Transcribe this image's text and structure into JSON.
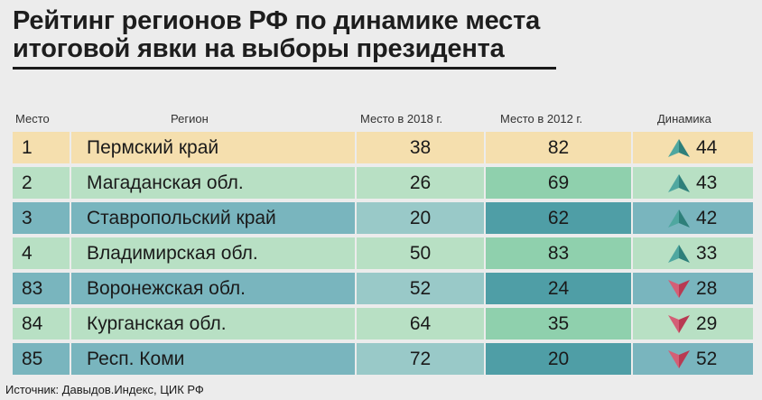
{
  "title_line1": "Рейтинг регионов РФ по динамике места",
  "title_line2": "итоговой явки на выборы президента",
  "headers": {
    "rank": "Место",
    "region": "Регион",
    "place2018": "Место в 2018 г.",
    "place2012": "Место в 2012 г.",
    "dynamics": "Динамика"
  },
  "source": "Источник: Давыдов.Индекс, ЦИК РФ",
  "colors": {
    "up_arrow": "#2e7f7a",
    "down_arrow": "#b83a52",
    "row_highlight": "#f5dfae"
  },
  "chart_data": {
    "type": "table",
    "columns": [
      "Место",
      "Регион",
      "Место в 2018 г.",
      "Место в 2012 г.",
      "Динамика"
    ],
    "rows": [
      {
        "rank": "1",
        "region": "Пермский край",
        "place2018": "38",
        "place2012": "82",
        "dynamics": "44",
        "direction": "up"
      },
      {
        "rank": "2",
        "region": "Магаданская обл.",
        "place2018": "26",
        "place2012": "69",
        "dynamics": "43",
        "direction": "up"
      },
      {
        "rank": "3",
        "region": "Ставропольский край",
        "place2018": "20",
        "place2012": "62",
        "dynamics": "42",
        "direction": "up"
      },
      {
        "rank": "4",
        "region": "Владимирская обл.",
        "place2018": "50",
        "place2012": "83",
        "dynamics": "33",
        "direction": "up"
      },
      {
        "rank": "83",
        "region": "Воронежская обл.",
        "place2018": "52",
        "place2012": "24",
        "dynamics": "28",
        "direction": "down"
      },
      {
        "rank": "84",
        "region": "Курганская обл.",
        "place2018": "64",
        "place2012": "35",
        "dynamics": "29",
        "direction": "down"
      },
      {
        "rank": "85",
        "region": "Респ. Коми",
        "place2018": "72",
        "place2012": "20",
        "dynamics": "52",
        "direction": "down"
      }
    ]
  }
}
